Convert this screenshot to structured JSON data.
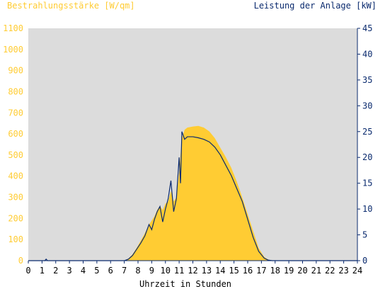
{
  "chart_data": {
    "type": "area",
    "left_axis_label": "Bestrahlungsstärke [W/qm]",
    "right_axis_label": "Leistung der Anlage [kW]",
    "xlabel": "Uhrzeit in Stunden",
    "x_ticks": [
      "0",
      "1",
      "2",
      "3",
      "4",
      "5",
      "6",
      "7",
      "8",
      "9",
      "10",
      "11",
      "12",
      "13",
      "14",
      "15",
      "16",
      "17",
      "18",
      "19",
      "20",
      "21",
      "22",
      "23",
      "24"
    ],
    "xlim": [
      0,
      24
    ],
    "ylim_left": [
      0,
      1100
    ],
    "ylim_right": [
      0,
      45
    ],
    "y_ticks_left": [
      "0",
      "100",
      "200",
      "300",
      "400",
      "500",
      "600",
      "700",
      "800",
      "900",
      "1000",
      "1100"
    ],
    "y_ticks_right": [
      "0",
      "5",
      "10",
      "15",
      "20",
      "25",
      "30",
      "35",
      "40",
      "45"
    ],
    "grid": false,
    "series": [
      {
        "name": "Bestrahlungsstärke [W/qm]",
        "axis": "left",
        "kind": "area",
        "color": "#FFCC33",
        "points": [
          [
            0,
            0
          ],
          [
            7.0,
            0
          ],
          [
            7.3,
            10
          ],
          [
            7.6,
            30
          ],
          [
            7.9,
            60
          ],
          [
            8.2,
            95
          ],
          [
            8.5,
            130
          ],
          [
            8.8,
            170
          ],
          [
            9.0,
            190
          ],
          [
            9.2,
            210
          ],
          [
            9.4,
            240
          ],
          [
            9.6,
            260
          ],
          [
            9.8,
            240
          ],
          [
            10.0,
            270
          ],
          [
            10.2,
            280
          ],
          [
            10.4,
            330
          ],
          [
            10.6,
            280
          ],
          [
            10.8,
            300
          ],
          [
            11.0,
            420
          ],
          [
            11.2,
            580
          ],
          [
            11.4,
            620
          ],
          [
            11.6,
            630
          ],
          [
            12.0,
            635
          ],
          [
            12.4,
            638
          ],
          [
            12.8,
            630
          ],
          [
            13.2,
            612
          ],
          [
            13.6,
            580
          ],
          [
            14.0,
            535
          ],
          [
            14.4,
            490
          ],
          [
            14.8,
            440
          ],
          [
            15.2,
            375
          ],
          [
            15.6,
            300
          ],
          [
            16.0,
            220
          ],
          [
            16.4,
            140
          ],
          [
            16.8,
            60
          ],
          [
            17.2,
            18
          ],
          [
            17.5,
            5
          ],
          [
            17.8,
            0
          ],
          [
            24,
            0
          ]
        ]
      },
      {
        "name": "Leistung der Anlage [kW]",
        "axis": "right",
        "kind": "line",
        "color": "#0A2A6E",
        "points": [
          [
            0,
            0
          ],
          [
            1.2,
            0
          ],
          [
            1.3,
            0.3
          ],
          [
            1.4,
            0
          ],
          [
            7.0,
            0
          ],
          [
            7.3,
            0.3
          ],
          [
            7.6,
            1.0
          ],
          [
            7.9,
            2.2
          ],
          [
            8.2,
            3.4
          ],
          [
            8.5,
            4.8
          ],
          [
            8.8,
            7.0
          ],
          [
            9.0,
            6.0
          ],
          [
            9.2,
            8.0
          ],
          [
            9.4,
            9.5
          ],
          [
            9.6,
            10.5
          ],
          [
            9.8,
            7.5
          ],
          [
            10.0,
            10.0
          ],
          [
            10.2,
            12.0
          ],
          [
            10.4,
            15.5
          ],
          [
            10.6,
            9.5
          ],
          [
            10.8,
            12.0
          ],
          [
            11.0,
            20.0
          ],
          [
            11.1,
            15.0
          ],
          [
            11.2,
            25.0
          ],
          [
            11.4,
            23.5
          ],
          [
            11.6,
            24.0
          ],
          [
            12.0,
            24.0
          ],
          [
            12.4,
            23.8
          ],
          [
            12.8,
            23.5
          ],
          [
            13.2,
            23.0
          ],
          [
            13.6,
            22.0
          ],
          [
            14.0,
            20.5
          ],
          [
            14.4,
            18.5
          ],
          [
            14.8,
            16.5
          ],
          [
            15.2,
            14.0
          ],
          [
            15.6,
            11.5
          ],
          [
            16.0,
            8.0
          ],
          [
            16.4,
            4.5
          ],
          [
            16.8,
            1.8
          ],
          [
            17.2,
            0.5
          ],
          [
            17.5,
            0.1
          ],
          [
            17.8,
            0
          ],
          [
            24,
            0
          ]
        ]
      }
    ]
  },
  "colors": {
    "plot_background": "#DCDCDC",
    "left_axis_text": "#FFCC33",
    "right_axis_text": "#0A2A6E",
    "x_axis_text": "#000000"
  }
}
